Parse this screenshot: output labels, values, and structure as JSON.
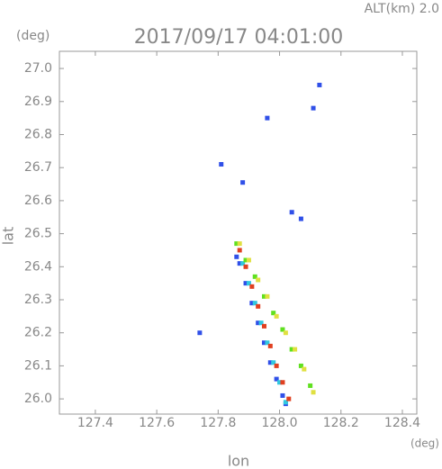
{
  "chart_data": {
    "type": "scatter",
    "title": "2017/09/17 04:01:00",
    "annotation": "ALT(km) 2.0",
    "y_unit": "(deg)",
    "x_unit": "(deg)",
    "xlabel": "lon",
    "ylabel": "lat",
    "xlim": [
      127.283,
      128.447
    ],
    "ylim": [
      25.954,
      27.052
    ],
    "xticks": [
      127.4,
      127.6,
      127.8,
      {
        "value": 128,
        "label": "128.0"
      },
      128.2,
      128.4
    ],
    "yticks": [
      {
        "value": 26,
        "label": "26.0"
      },
      26.1,
      26.2,
      26.3,
      26.4,
      26.5,
      26.6,
      26.7,
      26.8,
      26.9,
      {
        "value": 27,
        "label": "27.0"
      }
    ],
    "grid": false,
    "series": [
      {
        "color": "#3050e8",
        "x": [
          128.13,
          128.11,
          127.96,
          127.81,
          127.88,
          128.04,
          128.07,
          127.86,
          127.74,
          127.87,
          127.89,
          127.91,
          127.93,
          127.95,
          127.97,
          127.99,
          128.01,
          128.02
        ],
        "y": [
          26.95,
          26.88,
          26.85,
          26.71,
          26.655,
          26.565,
          26.545,
          26.43,
          26.2,
          26.41,
          26.35,
          26.29,
          26.23,
          26.17,
          26.11,
          26.06,
          26.01,
          25.985
        ]
      },
      {
        "color": "#30c8e0",
        "x": [
          127.88,
          127.9,
          127.92,
          127.94,
          127.96,
          127.98,
          128.0,
          128.02
        ],
        "y": [
          26.41,
          26.35,
          26.29,
          26.23,
          26.17,
          26.11,
          26.05,
          25.99
        ]
      },
      {
        "color": "#e04020",
        "x": [
          127.87,
          127.89,
          127.91,
          127.93,
          127.95,
          127.97,
          127.99,
          128.01,
          128.03
        ],
        "y": [
          26.45,
          26.4,
          26.34,
          26.28,
          26.22,
          26.16,
          26.1,
          26.05,
          26.0
        ]
      },
      {
        "color": "#60e020",
        "x": [
          127.86,
          127.89,
          127.92,
          127.95,
          127.98,
          128.01,
          128.04,
          128.07,
          128.1
        ],
        "y": [
          26.47,
          26.42,
          26.37,
          26.31,
          26.26,
          26.21,
          26.15,
          26.1,
          26.04
        ]
      },
      {
        "color": "#e0e040",
        "x": [
          127.87,
          127.9,
          127.93,
          127.96,
          127.99,
          128.02,
          128.05,
          128.08,
          128.11
        ],
        "y": [
          26.47,
          26.42,
          26.36,
          26.31,
          26.25,
          26.2,
          26.15,
          26.09,
          26.02
        ]
      }
    ]
  }
}
